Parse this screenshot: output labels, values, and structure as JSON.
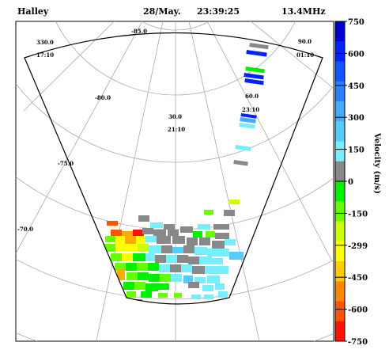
{
  "header": {
    "station": "Halley",
    "date": "28/May.",
    "time": "23:39:25",
    "frequency": "13.4MHz"
  },
  "map_labels": {
    "lat_labels": [
      "-85.0",
      "-80.0",
      "-75.0",
      "-70.0"
    ],
    "mlt_labels": [
      {
        "lon": "330.0",
        "time": "17:10"
      },
      {
        "lon": "30.0",
        "time": "21:10"
      },
      {
        "lon": "60.0",
        "time": "23:10"
      },
      {
        "lon": "90.0",
        "time": "01:10"
      }
    ]
  },
  "colorbar": {
    "title": "Velocity (m/s)",
    "ticks": [
      "750",
      "600",
      "450",
      "300",
      "150",
      "0",
      "-150",
      "-299",
      "-450",
      "-600",
      "-750"
    ],
    "colors": [
      "#0000cc",
      "#0022ff",
      "#1155ff",
      "#2a80ff",
      "#44aaff",
      "#55ccff",
      "#77eeff",
      "#888888",
      "#00ee00",
      "#66ff00",
      "#ccff00",
      "#ffff00",
      "#ffcc00",
      "#ff8800",
      "#ff5500",
      "#ff1100"
    ]
  },
  "colors": {
    "gray": "#888888",
    "cyan_light": "#77eeff",
    "cyan": "#55ccff",
    "green": "#00ee00",
    "lime": "#66ff00",
    "yellow_green": "#ccff00",
    "yellow": "#ffff00",
    "orange": "#ffaa00",
    "red_orange": "#ff5500",
    "red": "#ff1100",
    "blue": "#0022ff",
    "light_blue": "#44aaff"
  }
}
